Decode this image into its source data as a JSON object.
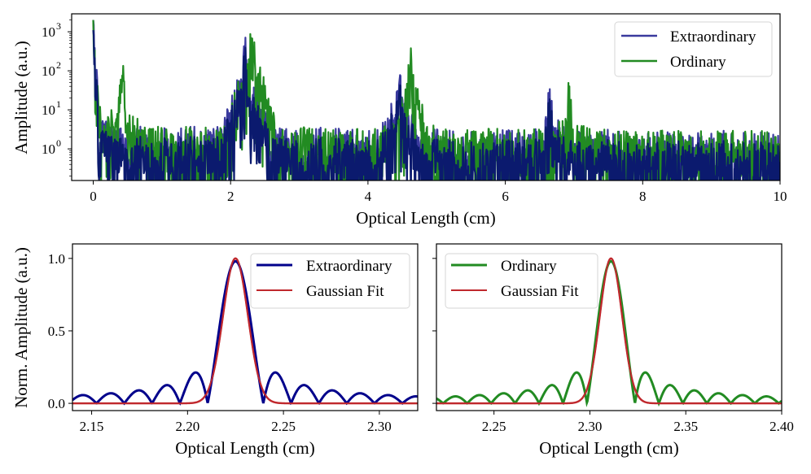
{
  "colors": {
    "extraordinary_top": "#3a3a9e",
    "extraordinary_dark": "#0b1a6e",
    "extraordinary": "#00008b",
    "ordinary": "#228b22",
    "gaussian": "#c0282d"
  },
  "chart_data": [
    {
      "type": "line",
      "panel": "top",
      "title": "",
      "xlabel": "Optical Length (cm)",
      "ylabel": "Amplitude (a.u.)",
      "xlim": [
        -0.3,
        10
      ],
      "ylim_log10": [
        -0.81,
        3.46
      ],
      "yscale": "log",
      "xticks": [
        0,
        2,
        4,
        6,
        8,
        10
      ],
      "xtick_labels": [
        "0",
        "2",
        "4",
        "6",
        "8",
        "10"
      ],
      "yticks_log10": [
        0,
        1,
        2,
        3
      ],
      "ytick_labels": [
        {
          "base": "10",
          "exp": "0"
        },
        {
          "base": "10",
          "exp": "1"
        },
        {
          "base": "10",
          "exp": "2"
        },
        {
          "base": "10",
          "exp": "3"
        }
      ],
      "legend": [
        "Extraordinary",
        "Ordinary"
      ],
      "legend_position": "top-right",
      "series": [
        {
          "name": "Extraordinary",
          "start_value": 2000,
          "peaks": [
            {
              "x": 2.22,
              "amplitude": 400
            },
            {
              "x": 4.45,
              "amplitude": 70
            },
            {
              "x": 6.65,
              "amplitude": 20
            }
          ],
          "noise_floor": 1.0
        },
        {
          "name": "Ordinary",
          "start_value": 2000,
          "peaks": [
            {
              "x": 0.42,
              "amplitude": 60
            },
            {
              "x": 2.31,
              "amplitude": 900
            },
            {
              "x": 4.62,
              "amplitude": 190
            },
            {
              "x": 6.93,
              "amplitude": 20
            }
          ],
          "noise_floor": 1.0
        }
      ]
    },
    {
      "type": "line",
      "panel": "bottom-left",
      "xlabel": "Optical Length (cm)",
      "ylabel": "Norm. Amplitude (a.u.)",
      "xlim": [
        2.14,
        2.32
      ],
      "ylim": [
        -0.05,
        1.1
      ],
      "xticks": [
        2.15,
        2.2,
        2.25,
        2.3
      ],
      "xtick_labels": [
        "2.15",
        "2.20",
        "2.25",
        "2.30"
      ],
      "yticks": [
        0.0,
        0.5,
        1.0
      ],
      "ytick_labels": [
        "0.0",
        "0.5",
        "1.0"
      ],
      "legend": [
        "Extraordinary",
        "Gaussian Fit"
      ],
      "legend_position": "top-right",
      "series": [
        {
          "name": "Extraordinary",
          "center": 2.225,
          "first_zero_offset": 0.0145,
          "peak": 1.0
        },
        {
          "name": "Gaussian Fit",
          "center": 2.225,
          "sigma": 0.0065,
          "peak": 1.0
        }
      ]
    },
    {
      "type": "line",
      "panel": "bottom-right",
      "xlabel": "Optical Length (cm)",
      "ylabel": "",
      "xlim": [
        2.22,
        2.4
      ],
      "ylim": [
        -0.05,
        1.1
      ],
      "xticks": [
        2.25,
        2.3,
        2.35,
        2.4
      ],
      "xtick_labels": [
        "2.25",
        "2.30",
        "2.35",
        "2.40"
      ],
      "yticks": [
        0.0,
        0.5,
        1.0
      ],
      "legend": [
        "Ordinary",
        "Gaussian Fit"
      ],
      "legend_position": "top-left",
      "series": [
        {
          "name": "Ordinary",
          "center": 2.311,
          "first_zero_offset": 0.0125,
          "peak": 1.0
        },
        {
          "name": "Gaussian Fit",
          "center": 2.311,
          "sigma": 0.0058,
          "peak": 1.0
        }
      ]
    }
  ]
}
